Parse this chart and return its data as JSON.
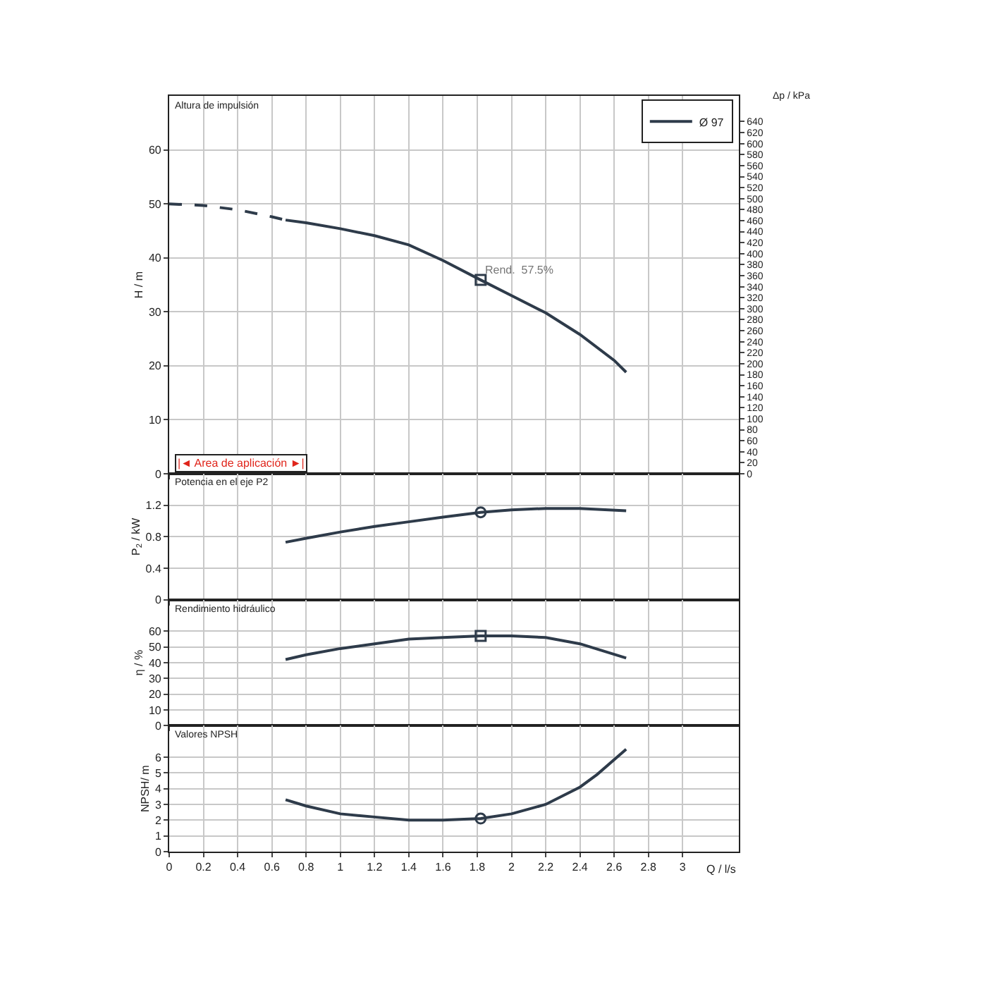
{
  "chart_data": [
    {
      "type": "line",
      "ylabel": "H / m",
      "y2label": "Δp / kPa",
      "annotations": [
        "Altura de impulsión",
        "|◄ Area de aplicación ►|",
        {
          "text": "Rend.  57.5%",
          "x": 1.82,
          "y": 35.9
        }
      ],
      "xlim": [
        0,
        3.33
      ],
      "xticks": [
        0,
        0.2,
        0.4,
        0.6,
        0.8,
        1,
        1.2,
        1.4,
        1.6,
        1.8,
        2,
        2.2,
        2.4,
        2.6,
        2.8,
        3
      ],
      "ylim": [
        0,
        70
      ],
      "yticks": [
        0,
        10,
        20,
        30,
        40,
        50,
        60
      ],
      "y2lim": [
        0,
        686.7
      ],
      "y2ticks": [
        0,
        20,
        40,
        60,
        80,
        100,
        120,
        140,
        160,
        180,
        200,
        220,
        240,
        260,
        280,
        300,
        320,
        340,
        360,
        380,
        400,
        420,
        440,
        460,
        480,
        500,
        520,
        540,
        560,
        580,
        600,
        620,
        640
      ],
      "tick_labels": "y",
      "grid": true,
      "legend": "top right",
      "series": [
        {
          "color": "#2e3b4a",
          "line_style": "dashed",
          "x": [
            0,
            0.2,
            0.4,
            0.6,
            0.68
          ],
          "values": [
            50,
            49.7,
            48.9,
            47.6,
            47
          ]
        },
        {
          "name": "Ø 97",
          "color": "#2e3b4a",
          "line_style": "solid",
          "x": [
            0.68,
            0.8,
            1.0,
            1.2,
            1.4,
            1.6,
            1.82,
            2.0,
            2.2,
            2.4,
            2.6,
            2.67
          ],
          "values": [
            47,
            46.5,
            45.4,
            44.1,
            42.4,
            39.5,
            35.9,
            33,
            29.8,
            25.8,
            21,
            18.8
          ]
        },
        {
          "type": "scatter",
          "marker": "square",
          "color": "#2e3b4a",
          "x": [
            1.82
          ],
          "values": [
            35.9
          ]
        }
      ]
    },
    {
      "type": "line",
      "ylabel": "P$_{2}$ / kW",
      "annotations": [
        "Potencia en el eje P2"
      ],
      "xlim": [
        0,
        3.33
      ],
      "xticks": [
        0,
        0.2,
        0.4,
        0.6,
        0.8,
        1,
        1.2,
        1.4,
        1.6,
        1.8,
        2,
        2.2,
        2.4,
        2.6,
        2.8,
        3
      ],
      "ylim": [
        0,
        1.6
      ],
      "yticks": [
        0,
        0.4,
        0.8,
        1.2
      ],
      "tick_labels": "y",
      "grid": true,
      "series": [
        {
          "color": "#2e3b4a",
          "x": [
            0.68,
            0.8,
            1.0,
            1.2,
            1.4,
            1.6,
            1.82,
            2.0,
            2.2,
            2.4,
            2.67
          ],
          "values": [
            0.73,
            0.78,
            0.86,
            0.93,
            0.99,
            1.05,
            1.11,
            1.14,
            1.16,
            1.16,
            1.13
          ]
        },
        {
          "type": "scatter",
          "marker": "circle",
          "color": "#2e3b4a",
          "x": [
            1.82
          ],
          "values": [
            1.11
          ]
        }
      ]
    },
    {
      "type": "line",
      "ylabel": "η / %",
      "annotations": [
        "Rendimiento hidráulico"
      ],
      "xlim": [
        0,
        3.33
      ],
      "xticks": [
        0,
        0.2,
        0.4,
        0.6,
        0.8,
        1,
        1.2,
        1.4,
        1.6,
        1.8,
        2,
        2.2,
        2.4,
        2.6,
        2.8,
        3
      ],
      "ylim": [
        0,
        80
      ],
      "yticks": [
        0,
        10,
        20,
        30,
        40,
        50,
        60
      ],
      "tick_labels": "y",
      "grid": true,
      "series": [
        {
          "color": "#2e3b4a",
          "x": [
            0.68,
            0.8,
            1.0,
            1.2,
            1.4,
            1.6,
            1.82,
            2.0,
            2.2,
            2.4,
            2.67
          ],
          "values": [
            42,
            45,
            49,
            52,
            55,
            56,
            57,
            57,
            56,
            52,
            43
          ]
        },
        {
          "type": "scatter",
          "marker": "square",
          "color": "#2e3b4a",
          "x": [
            1.82
          ],
          "values": [
            57
          ]
        }
      ]
    },
    {
      "type": "line",
      "ylabel": "NPSH/ m",
      "xlabel": "Q / l/s",
      "annotations": [
        "Valores NPSH"
      ],
      "xlim": [
        0,
        3.33
      ],
      "xticks": [
        0,
        0.2,
        0.4,
        0.6,
        0.8,
        1,
        1.2,
        1.4,
        1.6,
        1.8,
        2,
        2.2,
        2.4,
        2.6,
        2.8,
        3
      ],
      "ylim": [
        0,
        8
      ],
      "yticks": [
        0,
        1,
        2,
        3,
        4,
        5,
        6
      ],
      "grid": true,
      "series": [
        {
          "color": "#2e3b4a",
          "x": [
            0.68,
            0.8,
            1.0,
            1.2,
            1.4,
            1.6,
            1.82,
            2.0,
            2.2,
            2.4,
            2.5,
            2.67
          ],
          "values": [
            3.3,
            2.9,
            2.4,
            2.2,
            2.0,
            2.0,
            2.1,
            2.4,
            3.0,
            4.1,
            4.9,
            6.5
          ]
        },
        {
          "type": "scatter",
          "marker": "circle",
          "color": "#2e3b4a",
          "x": [
            1.82
          ],
          "values": [
            2.1
          ]
        }
      ]
    }
  ]
}
